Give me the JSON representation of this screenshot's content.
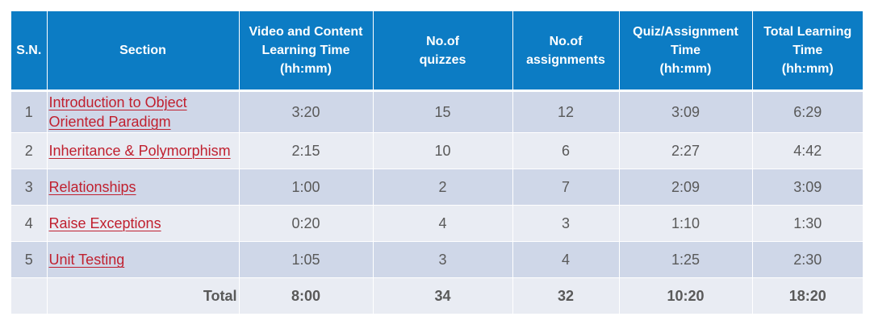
{
  "table": {
    "headers": {
      "sn": [
        "S.N."
      ],
      "section": [
        "Section"
      ],
      "video": [
        "Video and Content",
        "Learning Time",
        "(hh:mm)"
      ],
      "quizzes": [
        "No.of",
        "quizzes"
      ],
      "assignments": [
        "No.of",
        "assignments"
      ],
      "quiz_time": [
        "Quiz/Assignment",
        "Time",
        "(hh:mm)"
      ],
      "total_time": [
        "Total Learning",
        "Time",
        "(hh:mm)"
      ]
    },
    "rows": [
      {
        "sn": "1",
        "section": "Introduction to Object Oriented Paradigm",
        "video": "3:20",
        "quizzes": "15",
        "assignments": "12",
        "quiz_time": "3:09",
        "total_time": "6:29"
      },
      {
        "sn": "2",
        "section": "Inheritance & Polymorphism",
        "video": "2:15",
        "quizzes": "10",
        "assignments": "6",
        "quiz_time": "2:27",
        "total_time": "4:42"
      },
      {
        "sn": "3",
        "section": "Relationships",
        "video": "1:00",
        "quizzes": "2",
        "assignments": "7",
        "quiz_time": "2:09",
        "total_time": "3:09"
      },
      {
        "sn": "4",
        "section": "Raise Exceptions",
        "video": "0:20",
        "quizzes": "4",
        "assignments": "3",
        "quiz_time": "1:10",
        "total_time": "1:30"
      },
      {
        "sn": "5",
        "section": "Unit Testing",
        "video": "1:05",
        "quizzes": "3",
        "assignments": "4",
        "quiz_time": "1:25",
        "total_time": "2:30"
      }
    ],
    "total": {
      "label": "Total",
      "video": "8:00",
      "quizzes": "34",
      "assignments": "32",
      "quiz_time": "10:20",
      "total_time": "18:20"
    }
  },
  "colors": {
    "header_bg": "#0c7cc4",
    "row_odd": "#cfd7e8",
    "row_even": "#e9ecf3",
    "link": "#c0202f",
    "text": "#595959"
  }
}
